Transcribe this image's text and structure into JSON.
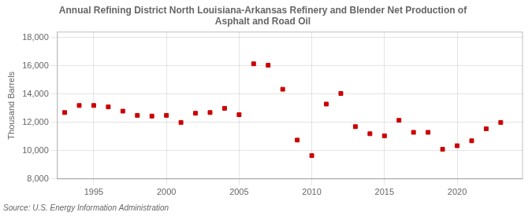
{
  "chart_data": {
    "type": "scatter",
    "title": "Annual Refining District North Louisiana-Arkansas Refinery and Blender Net Production of\nAsphalt and Road Oil",
    "ylabel": "Thousand Barrels",
    "source": "Source: U.S. Energy Information Administration",
    "x": [
      1993,
      1994,
      1995,
      1996,
      1997,
      1998,
      1999,
      2000,
      2001,
      2002,
      2003,
      2004,
      2005,
      2006,
      2007,
      2008,
      2009,
      2010,
      2011,
      2012,
      2013,
      2014,
      2015,
      2016,
      2017,
      2018,
      2019,
      2020,
      2021,
      2022,
      2023
    ],
    "values": [
      12700,
      13200,
      13200,
      13100,
      12800,
      12500,
      12450,
      12500,
      12000,
      12650,
      12700,
      13000,
      12550,
      16150,
      16050,
      14350,
      10750,
      9650,
      13300,
      14050,
      11700,
      11200,
      11050,
      12150,
      11300,
      11300,
      10100,
      10350,
      10700,
      11550,
      12000
    ],
    "color": "#cc0000",
    "marker": "square",
    "xlim": [
      1992.5,
      2024.5
    ],
    "ylim": [
      8000,
      18400
    ],
    "xticks": [
      1995,
      2000,
      2005,
      2010,
      2015,
      2020
    ],
    "yticks": [
      {
        "value": 8000,
        "label": "8,000"
      },
      {
        "value": 10000,
        "label": "10,000"
      },
      {
        "value": 12000,
        "label": "12,000"
      },
      {
        "value": 14000,
        "label": "14,000"
      },
      {
        "value": 16000,
        "label": "16,000"
      },
      {
        "value": 18000,
        "label": "18,000"
      }
    ],
    "grid": true
  }
}
